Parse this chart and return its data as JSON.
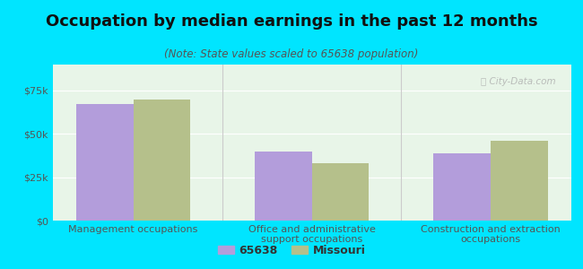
{
  "title": "Occupation by median earnings in the past 12 months",
  "subtitle": "(Note: State values scaled to 65638 population)",
  "categories": [
    "Management occupations",
    "Office and administrative\nsupport occupations",
    "Construction and extraction\noccupations"
  ],
  "series_65638": [
    67000,
    40000,
    39000
  ],
  "series_missouri": [
    70000,
    33000,
    46000
  ],
  "color_65638": "#b39ddb",
  "color_missouri": "#b5c08b",
  "background_outer": "#00e5ff",
  "background_plot_gradient_top": "#e8f5e9",
  "background_plot": "#e8f5e8",
  "ylim": [
    0,
    90000
  ],
  "yticks": [
    0,
    25000,
    50000,
    75000
  ],
  "ytick_labels": [
    "$0",
    "$25k",
    "$50k",
    "$75k"
  ],
  "legend_label_65638": "65638",
  "legend_label_missouri": "Missouri",
  "bar_width": 0.32,
  "title_fontsize": 13,
  "subtitle_fontsize": 8.5,
  "tick_fontsize": 8,
  "legend_fontsize": 9,
  "watermark_text": "ⓘ City-Data.com"
}
